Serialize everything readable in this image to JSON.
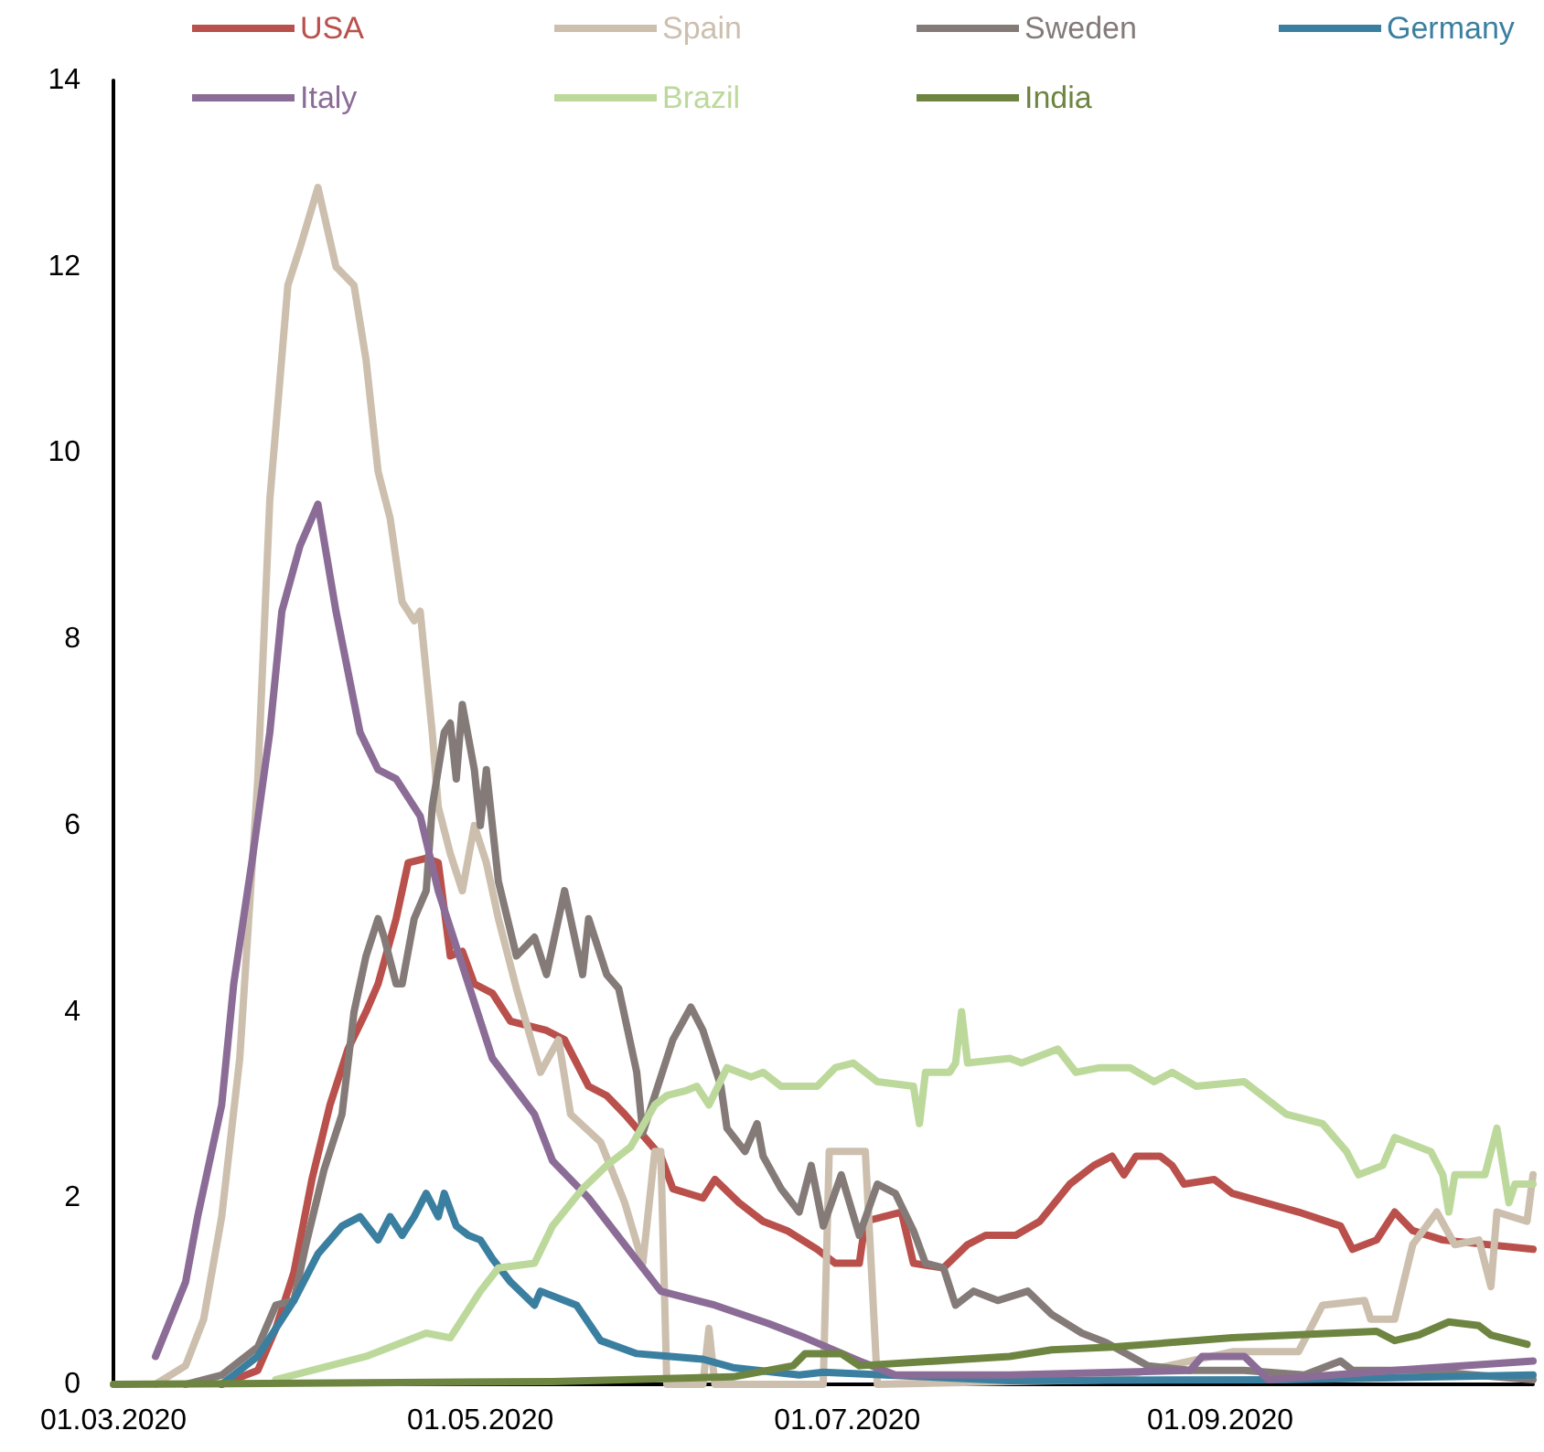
{
  "chart_data": {
    "type": "line",
    "legend": "top",
    "grid": false,
    "marker": "none",
    "line_style": "solid",
    "xlim": [
      "2020-03-01",
      "2020-10-23"
    ],
    "xticks": [
      {
        "value": "2020-03-01",
        "label": "01.03.2020"
      },
      {
        "value": "2020-05-01",
        "label": "01.05.2020"
      },
      {
        "value": "2020-07-01",
        "label": "01.07.2020"
      },
      {
        "value": "2020-09-01",
        "label": "01.09.2020"
      }
    ],
    "ylim": [
      0,
      14
    ],
    "yticks": [
      0,
      2,
      4,
      6,
      8,
      10,
      12,
      14
    ],
    "series": [
      {
        "name": "USA",
        "color": "#b9504b",
        "x": [
          "2020-03-19",
          "2020-03-25",
          "2020-03-28",
          "2020-03-31",
          "2020-04-03",
          "2020-04-06",
          "2020-04-09",
          "2020-04-12",
          "2020-04-14",
          "2020-04-17",
          "2020-04-19",
          "2020-04-22",
          "2020-04-24",
          "2020-04-26",
          "2020-04-28",
          "2020-04-30",
          "2020-05-03",
          "2020-05-06",
          "2020-05-12",
          "2020-05-15",
          "2020-05-19",
          "2020-05-22",
          "2020-05-25",
          "2020-05-31",
          "2020-06-02",
          "2020-06-07",
          "2020-06-09",
          "2020-06-13",
          "2020-06-17",
          "2020-06-21",
          "2020-06-26",
          "2020-06-29",
          "2020-07-03",
          "2020-07-04",
          "2020-07-10",
          "2020-07-12",
          "2020-07-17",
          "2020-07-21",
          "2020-07-24",
          "2020-07-29",
          "2020-08-02",
          "2020-08-07",
          "2020-08-11",
          "2020-08-14",
          "2020-08-16",
          "2020-08-18",
          "2020-08-22",
          "2020-08-24",
          "2020-08-26",
          "2020-08-31",
          "2020-09-03",
          "2020-09-14",
          "2020-09-21",
          "2020-09-23",
          "2020-09-27",
          "2020-09-30",
          "2020-10-03",
          "2020-10-08",
          "2020-10-23"
        ],
        "values": [
          0.0,
          0.15,
          0.6,
          1.2,
          2.2,
          3.0,
          3.6,
          4.0,
          4.3,
          5.0,
          5.6,
          5.65,
          5.6,
          4.6,
          4.65,
          4.3,
          4.2,
          3.9,
          3.8,
          3.7,
          3.2,
          3.1,
          2.9,
          2.45,
          2.1,
          2.0,
          2.2,
          1.95,
          1.75,
          1.65,
          1.45,
          1.3,
          1.3,
          1.75,
          1.85,
          1.3,
          1.25,
          1.5,
          1.6,
          1.6,
          1.75,
          2.15,
          2.35,
          2.45,
          2.25,
          2.45,
          2.45,
          2.35,
          2.15,
          2.2,
          2.05,
          1.85,
          1.7,
          1.45,
          1.55,
          1.85,
          1.65,
          1.55,
          1.45
        ]
      },
      {
        "name": "Spain",
        "color": "#cdbfae",
        "x": [
          "2020-03-08",
          "2020-03-13",
          "2020-03-16",
          "2020-03-19",
          "2020-03-22",
          "2020-03-25",
          "2020-03-27",
          "2020-03-30",
          "2020-04-01",
          "2020-04-04",
          "2020-04-07",
          "2020-04-10",
          "2020-04-12",
          "2020-04-14",
          "2020-04-16",
          "2020-04-18",
          "2020-04-20",
          "2020-04-21",
          "2020-04-23",
          "2020-04-24",
          "2020-04-26",
          "2020-04-28",
          "2020-04-30",
          "2020-05-02",
          "2020-05-04",
          "2020-05-07",
          "2020-05-11",
          "2020-05-14",
          "2020-05-16",
          "2020-05-21",
          "2020-05-25",
          "2020-05-28",
          "2020-05-30",
          "2020-05-31",
          "2020-06-01",
          "2020-06-07",
          "2020-06-08",
          "2020-06-09",
          "2020-06-27",
          "2020-06-28",
          "2020-07-04",
          "2020-07-06",
          "2020-08-13",
          "2020-09-03",
          "2020-09-14",
          "2020-09-18",
          "2020-09-25",
          "2020-09-26",
          "2020-09-30",
          "2020-10-03",
          "2020-10-07",
          "2020-10-10",
          "2020-10-14",
          "2020-10-16",
          "2020-10-17",
          "2020-10-22",
          "2020-10-23"
        ],
        "values": [
          0.0,
          0.2,
          0.7,
          1.8,
          3.5,
          6.5,
          9.5,
          11.8,
          12.2,
          12.85,
          12.0,
          11.8,
          11.0,
          9.8,
          9.3,
          8.4,
          8.2,
          8.3,
          7.0,
          6.2,
          5.7,
          5.3,
          6.0,
          5.6,
          5.0,
          4.25,
          3.35,
          3.7,
          2.9,
          2.6,
          1.95,
          1.3,
          2.5,
          2.5,
          0.0,
          0.0,
          0.6,
          0.0,
          0.0,
          2.5,
          2.5,
          0.0,
          0.05,
          0.35,
          0.35,
          0.85,
          0.9,
          0.7,
          0.7,
          1.5,
          1.85,
          1.5,
          1.55,
          1.05,
          1.85,
          1.75,
          2.25
        ]
      },
      {
        "name": "Sweden",
        "color": "#847b78",
        "x": [
          "2020-03-13",
          "2020-03-19",
          "2020-03-25",
          "2020-03-28",
          "2020-03-31",
          "2020-04-02",
          "2020-04-05",
          "2020-04-08",
          "2020-04-10",
          "2020-04-12",
          "2020-04-14",
          "2020-04-15",
          "2020-04-17",
          "2020-04-18",
          "2020-04-20",
          "2020-04-22",
          "2020-04-23",
          "2020-04-25",
          "2020-04-26",
          "2020-04-27",
          "2020-04-28",
          "2020-04-30",
          "2020-05-01",
          "2020-05-02",
          "2020-05-04",
          "2020-05-07",
          "2020-05-10",
          "2020-05-12",
          "2020-05-15",
          "2020-05-18",
          "2020-05-19",
          "2020-05-22",
          "2020-05-24",
          "2020-05-27",
          "2020-05-28",
          "2020-05-30",
          "2020-06-02",
          "2020-06-05",
          "2020-06-07",
          "2020-06-10",
          "2020-06-11",
          "2020-06-14",
          "2020-06-16",
          "2020-06-17",
          "2020-06-20",
          "2020-06-23",
          "2020-06-25",
          "2020-06-27",
          "2020-06-30",
          "2020-07-03",
          "2020-07-06",
          "2020-07-09",
          "2020-07-12",
          "2020-07-14",
          "2020-07-17",
          "2020-07-19",
          "2020-07-22",
          "2020-07-26",
          "2020-07-31",
          "2020-08-04",
          "2020-08-09",
          "2020-08-13",
          "2020-08-20",
          "2020-08-27",
          "2020-09-05",
          "2020-09-15",
          "2020-09-21",
          "2020-09-23",
          "2020-10-04",
          "2020-10-23"
        ],
        "values": [
          0.0,
          0.1,
          0.4,
          0.85,
          0.9,
          1.5,
          2.3,
          2.9,
          4.0,
          4.6,
          5.0,
          4.8,
          4.3,
          4.3,
          5.0,
          5.3,
          6.2,
          7.0,
          7.1,
          6.5,
          7.3,
          6.6,
          6.0,
          6.6,
          5.4,
          4.6,
          4.8,
          4.4,
          5.3,
          4.4,
          5.0,
          4.4,
          4.25,
          3.35,
          2.7,
          3.1,
          3.7,
          4.05,
          3.8,
          3.2,
          2.75,
          2.5,
          2.8,
          2.45,
          2.1,
          1.85,
          2.35,
          1.7,
          2.25,
          1.6,
          2.15,
          2.05,
          1.65,
          1.3,
          1.25,
          0.85,
          1.0,
          0.9,
          1.0,
          0.75,
          0.55,
          0.45,
          0.2,
          0.15,
          0.15,
          0.1,
          0.25,
          0.15,
          0.15,
          0.05
        ]
      },
      {
        "name": "Germany",
        "color": "#3b7fa0",
        "x": [
          "2020-03-19",
          "2020-03-25",
          "2020-03-31",
          "2020-04-04",
          "2020-04-08",
          "2020-04-11",
          "2020-04-14",
          "2020-04-16",
          "2020-04-18",
          "2020-04-20",
          "2020-04-22",
          "2020-04-24",
          "2020-04-25",
          "2020-04-27",
          "2020-04-29",
          "2020-05-01",
          "2020-05-03",
          "2020-05-06",
          "2020-05-10",
          "2020-05-11",
          "2020-05-17",
          "2020-05-21",
          "2020-05-27",
          "2020-06-07",
          "2020-06-12",
          "2020-06-23",
          "2020-06-27",
          "2020-07-28",
          "2020-09-12",
          "2020-10-23"
        ],
        "values": [
          0.0,
          0.3,
          0.9,
          1.4,
          1.7,
          1.8,
          1.55,
          1.8,
          1.6,
          1.8,
          2.05,
          1.8,
          2.05,
          1.7,
          1.6,
          1.55,
          1.35,
          1.1,
          0.85,
          1.0,
          0.85,
          0.47,
          0.33,
          0.27,
          0.18,
          0.1,
          0.13,
          0.04,
          0.05,
          0.1
        ]
      },
      {
        "name": "Italy",
        "color": "#8b6c96",
        "x": [
          "2020-03-08",
          "2020-03-13",
          "2020-03-15",
          "2020-03-19",
          "2020-03-21",
          "2020-03-24",
          "2020-03-27",
          "2020-03-29",
          "2020-04-01",
          "2020-04-04",
          "2020-04-07",
          "2020-04-11",
          "2020-04-14",
          "2020-04-17",
          "2020-04-21",
          "2020-04-24",
          "2020-04-29",
          "2020-05-03",
          "2020-05-10",
          "2020-05-13",
          "2020-05-19",
          "2020-05-25",
          "2020-05-31",
          "2020-06-09",
          "2020-06-18",
          "2020-06-24",
          "2020-07-03",
          "2020-07-09",
          "2020-07-28",
          "2020-08-27",
          "2020-08-29",
          "2020-09-05",
          "2020-09-09",
          "2020-09-30",
          "2020-10-23"
        ],
        "values": [
          0.3,
          1.1,
          1.8,
          3.0,
          4.3,
          5.6,
          7.0,
          8.3,
          9.0,
          9.45,
          8.3,
          7.0,
          6.6,
          6.5,
          6.1,
          5.3,
          4.3,
          3.5,
          2.9,
          2.4,
          2.0,
          1.5,
          1.0,
          0.85,
          0.65,
          0.5,
          0.25,
          0.1,
          0.1,
          0.15,
          0.3,
          0.3,
          0.05,
          0.15,
          0.25
        ]
      },
      {
        "name": "Brazil",
        "color": "#bcd99b",
        "x": [
          "2020-03-28",
          "2020-04-06",
          "2020-04-12",
          "2020-04-22",
          "2020-04-26",
          "2020-05-01",
          "2020-05-04",
          "2020-05-10",
          "2020-05-13",
          "2020-05-18",
          "2020-05-22",
          "2020-05-26",
          "2020-05-30",
          "2020-06-01",
          "2020-06-04",
          "2020-06-06",
          "2020-06-08",
          "2020-06-11",
          "2020-06-15",
          "2020-06-17",
          "2020-06-20",
          "2020-06-26",
          "2020-06-29",
          "2020-07-02",
          "2020-07-06",
          "2020-07-12",
          "2020-07-13",
          "2020-07-14",
          "2020-07-18",
          "2020-07-19",
          "2020-07-20",
          "2020-07-21",
          "2020-07-28",
          "2020-07-30",
          "2020-08-05",
          "2020-08-08",
          "2020-08-12",
          "2020-08-17",
          "2020-08-21",
          "2020-08-24",
          "2020-08-28",
          "2020-09-05",
          "2020-09-12",
          "2020-09-18",
          "2020-09-22",
          "2020-09-24",
          "2020-09-28",
          "2020-09-30",
          "2020-10-06",
          "2020-10-08",
          "2020-10-09",
          "2020-10-10",
          "2020-10-15",
          "2020-10-17",
          "2020-10-19",
          "2020-10-20",
          "2020-10-23"
        ],
        "values": [
          0.05,
          0.2,
          0.3,
          0.55,
          0.5,
          1.0,
          1.25,
          1.3,
          1.7,
          2.1,
          2.35,
          2.55,
          3.0,
          3.1,
          3.15,
          3.2,
          3.0,
          3.4,
          3.3,
          3.35,
          3.2,
          3.2,
          3.4,
          3.45,
          3.25,
          3.2,
          2.8,
          3.35,
          3.35,
          3.45,
          4.0,
          3.45,
          3.5,
          3.45,
          3.6,
          3.35,
          3.4,
          3.4,
          3.25,
          3.35,
          3.2,
          3.25,
          2.9,
          2.8,
          2.5,
          2.25,
          2.35,
          2.65,
          2.5,
          2.25,
          1.85,
          2.25,
          2.25,
          2.75,
          1.95,
          2.15,
          2.15
        ]
      },
      {
        "name": "India",
        "color": "#6d8540",
        "x": [
          "2020-03-01",
          "2020-05-13",
          "2020-06-12",
          "2020-06-22",
          "2020-06-24",
          "2020-06-30",
          "2020-07-03",
          "2020-07-28",
          "2020-08-04",
          "2020-08-14",
          "2020-09-03",
          "2020-09-27",
          "2020-09-30",
          "2020-10-04",
          "2020-10-09",
          "2020-10-14",
          "2020-10-16",
          "2020-10-22"
        ],
        "values": [
          0.0,
          0.03,
          0.08,
          0.2,
          0.33,
          0.33,
          0.2,
          0.3,
          0.37,
          0.4,
          0.5,
          0.57,
          0.47,
          0.53,
          0.67,
          0.63,
          0.53,
          0.43
        ]
      }
    ]
  }
}
